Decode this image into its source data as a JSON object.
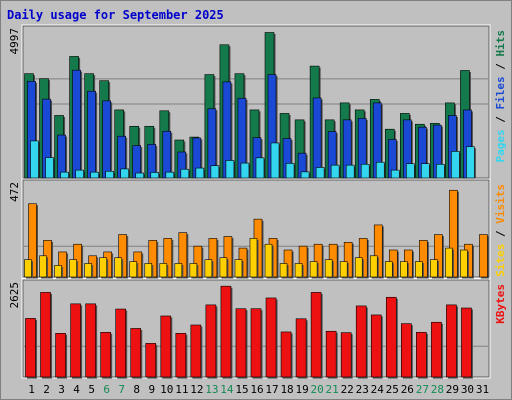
{
  "title": "Daily usage for September 2025",
  "colors": {
    "title": "#0000cc",
    "panel_bg": "#c0c0c0",
    "grid": "#808080",
    "hits": "#157a4b",
    "files": "#1a49d6",
    "pages": "#33d6ee",
    "visits": "#ff8c00",
    "sites": "#ffd000",
    "kbytes": "#ee1111",
    "weekend_label": "#138a52",
    "day_label": "#000000"
  },
  "chart_data": [
    {
      "type": "bar",
      "name": "hits-files-pages",
      "ymax_label": "4997",
      "ymax": 4997,
      "legend": [
        "Pages",
        "Files",
        "Hits"
      ],
      "categories": [
        "1",
        "2",
        "3",
        "4",
        "5",
        "6",
        "7",
        "8",
        "9",
        "10",
        "11",
        "12",
        "13",
        "14",
        "15",
        "16",
        "17",
        "18",
        "19",
        "20",
        "21",
        "22",
        "23",
        "24",
        "25",
        "26",
        "27",
        "28",
        "29",
        "30",
        "31"
      ],
      "series": [
        {
          "name": "Hits",
          "values": [
            3570,
            3400,
            2140,
            4160,
            3570,
            3330,
            2330,
            1770,
            1770,
            2300,
            1300,
            1400,
            3540,
            4560,
            3570,
            2330,
            4980,
            2210,
            1990,
            3830,
            1990,
            2570,
            2330,
            2690,
            1670,
            2210,
            1840,
            1870,
            2570,
            3680,
            0
          ]
        },
        {
          "name": "Files",
          "values": [
            3310,
            2700,
            1470,
            3690,
            2970,
            2640,
            1430,
            1110,
            1150,
            1600,
            890,
            1370,
            2370,
            3290,
            2730,
            1380,
            3540,
            1350,
            850,
            2740,
            1590,
            1990,
            2040,
            2570,
            1320,
            1990,
            1740,
            1810,
            2140,
            2330,
            0
          ]
        },
        {
          "name": "Pages",
          "values": [
            1270,
            700,
            200,
            270,
            200,
            230,
            310,
            170,
            190,
            200,
            300,
            340,
            420,
            600,
            510,
            690,
            1200,
            500,
            210,
            360,
            440,
            440,
            470,
            540,
            270,
            490,
            490,
            470,
            910,
            1070,
            0
          ]
        }
      ]
    },
    {
      "type": "bar",
      "name": "visits-sites",
      "ymax_label": "472",
      "ymax": 472,
      "legend": [
        "Sites",
        "Visits"
      ],
      "series": [
        {
          "name": "Visits",
          "values": [
            380,
            190,
            130,
            170,
            110,
            130,
            220,
            130,
            190,
            200,
            230,
            160,
            200,
            210,
            150,
            300,
            200,
            140,
            160,
            170,
            170,
            180,
            200,
            270,
            140,
            140,
            190,
            220,
            450,
            170,
            220
          ]
        },
        {
          "name": "Sites",
          "values": [
            90,
            110,
            60,
            90,
            70,
            100,
            100,
            80,
            70,
            70,
            70,
            70,
            90,
            100,
            90,
            200,
            170,
            70,
            70,
            80,
            90,
            80,
            100,
            110,
            80,
            80,
            80,
            90,
            150,
            140,
            0
          ]
        }
      ]
    },
    {
      "type": "bar",
      "name": "kbytes",
      "ymax_label": "2625",
      "ymax": 2625,
      "legend": [
        "KBytes"
      ],
      "series": [
        {
          "name": "KBytes",
          "values": [
            1690,
            2440,
            1260,
            2110,
            2110,
            1290,
            1960,
            1400,
            970,
            1760,
            1260,
            1500,
            2080,
            2620,
            1970,
            1970,
            2280,
            1300,
            1680,
            2440,
            1320,
            1280,
            2050,
            1790,
            2300,
            1540,
            1290,
            1580,
            2080,
            1990,
            0
          ]
        }
      ]
    }
  ],
  "x_labels": [
    {
      "t": "1",
      "w": false
    },
    {
      "t": "2",
      "w": false
    },
    {
      "t": "3",
      "w": false
    },
    {
      "t": "4",
      "w": false
    },
    {
      "t": "5",
      "w": false
    },
    {
      "t": "6",
      "w": true
    },
    {
      "t": "7",
      "w": true
    },
    {
      "t": "8",
      "w": false
    },
    {
      "t": "9",
      "w": false
    },
    {
      "t": "10",
      "w": false
    },
    {
      "t": "11",
      "w": false
    },
    {
      "t": "12",
      "w": false
    },
    {
      "t": "13",
      "w": true
    },
    {
      "t": "14",
      "w": true
    },
    {
      "t": "15",
      "w": false
    },
    {
      "t": "16",
      "w": false
    },
    {
      "t": "17",
      "w": false
    },
    {
      "t": "18",
      "w": false
    },
    {
      "t": "19",
      "w": false
    },
    {
      "t": "20",
      "w": true
    },
    {
      "t": "21",
      "w": true
    },
    {
      "t": "22",
      "w": false
    },
    {
      "t": "23",
      "w": false
    },
    {
      "t": "24",
      "w": false
    },
    {
      "t": "25",
      "w": false
    },
    {
      "t": "26",
      "w": false
    },
    {
      "t": "27",
      "w": true
    },
    {
      "t": "28",
      "w": true
    },
    {
      "t": "29",
      "w": false
    },
    {
      "t": "30",
      "w": false
    },
    {
      "t": "31",
      "w": false
    }
  ]
}
